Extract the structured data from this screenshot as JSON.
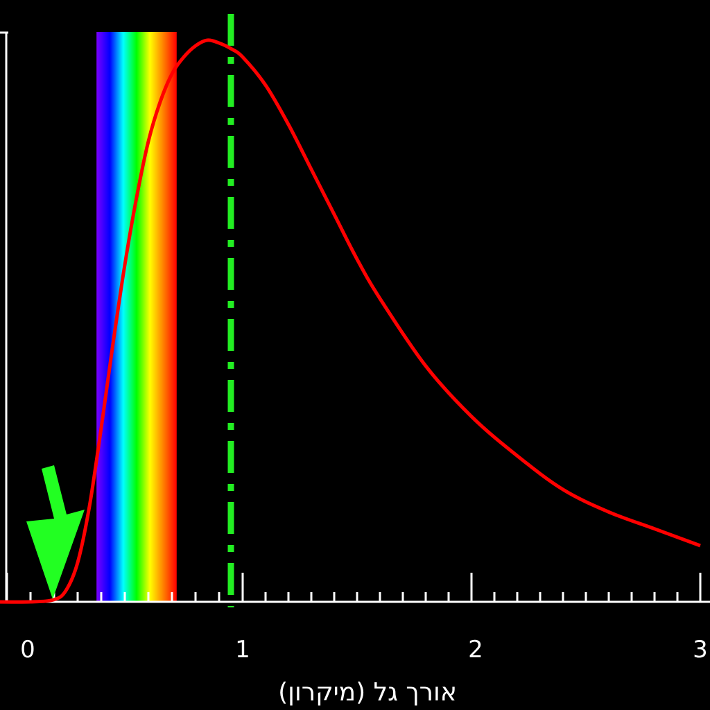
{
  "chart_data": {
    "type": "line",
    "title": "",
    "xlabel": "אורך גל (מיקרון)",
    "ylabel": "",
    "xlim": [
      -0.1,
      3.0
    ],
    "ylim": [
      0,
      1.0
    ],
    "x_ticks": [
      0,
      1,
      2,
      3
    ],
    "x_tick_labels": [
      "0",
      "1",
      "2",
      "3"
    ],
    "minor_tick_step": 0.1,
    "grid": false,
    "background_color": "#000000",
    "series": [
      {
        "color": "#ff0000",
        "x": [
          -0.1,
          0.1,
          0.2,
          0.25,
          0.3,
          0.35,
          0.4,
          0.45,
          0.5,
          0.55,
          0.6,
          0.65,
          0.7,
          0.75,
          0.8,
          0.85,
          0.9,
          0.95,
          1.0,
          1.1,
          1.2,
          1.3,
          1.4,
          1.5,
          1.6,
          1.8,
          2.0,
          2.2,
          2.4,
          2.6,
          2.8,
          3.0
        ],
        "y": [
          0,
          0,
          0.004,
          0.02,
          0.07,
          0.17,
          0.31,
          0.46,
          0.6,
          0.72,
          0.82,
          0.89,
          0.94,
          0.97,
          0.99,
          1.0,
          0.995,
          0.985,
          0.97,
          0.92,
          0.85,
          0.77,
          0.69,
          0.61,
          0.54,
          0.42,
          0.33,
          0.26,
          0.2,
          0.16,
          0.13,
          0.1
        ]
      }
    ],
    "annotations": {
      "peak_line": {
        "x": 0.95,
        "color": "#22ee22",
        "style": "dash-dot"
      },
      "arrow": {
        "target_x": 0.2,
        "color": "#22ff22"
      },
      "visible_band": {
        "x_start": 0.38,
        "x_end": 0.72,
        "colors": [
          "#7a00ff",
          "#0000ff",
          "#00ffff",
          "#00ff00",
          "#ffff00",
          "#ff8000",
          "#ff0000"
        ]
      }
    }
  }
}
